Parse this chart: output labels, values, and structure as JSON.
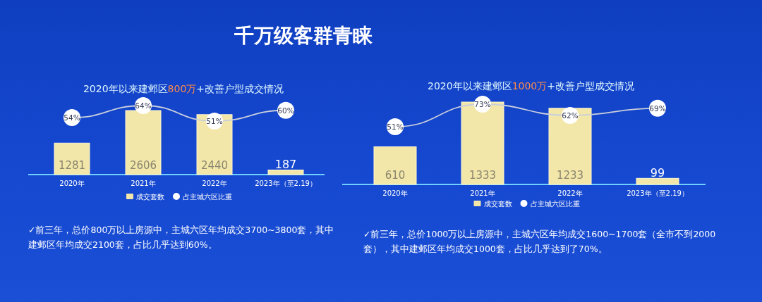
{
  "chart_data": [
    {
      "type": "bar",
      "title": "千万级客群青睐",
      "subtitle": "2020年以来建邺区**800万**+改善户型成交情况",
      "categories": [
        "2020年",
        "2021年",
        "2022年",
        "2023年（至2.19）"
      ],
      "series": [
        {
          "name": "成交套数",
          "color": "#f2e7a8",
          "values": [
            1281,
            2606,
            2440,
            187
          ]
        },
        {
          "name": "占主城六区比重",
          "type": "line",
          "axis": "y2",
          "color": "#c9cfdc",
          "values": [
            54,
            64,
            51,
            60
          ],
          "value_labels": [
            "54%",
            "64%",
            "51%",
            "60%"
          ]
        }
      ],
      "data_labels": true,
      "legend": "bottom",
      "marker": "circle",
      "annotations": [
        "✓前三年，总价800万以上房源中，主城六区年均成交3700~3800套，其中建邺区年均成交2100套，占比几乎达到60%。"
      ]
    },
    {
      "type": "bar",
      "subtitle": "2020年以来建邺区**1000万**+改善户型成交情况",
      "categories": [
        "2020年",
        "2021年",
        "2022年",
        "2023年（至2.19）"
      ],
      "series": [
        {
          "name": "成交套数",
          "color": "#f2e7a8",
          "values": [
            610,
            1333,
            1233,
            99
          ]
        },
        {
          "name": "占主城六区比重",
          "type": "line",
          "axis": "y2",
          "color": "#c9cfdc",
          "values": [
            51,
            73,
            62,
            69
          ],
          "value_labels": [
            "51%",
            "73%",
            "62%",
            "69%"
          ]
        }
      ],
      "data_labels": true,
      "legend": "bottom",
      "marker": "circle",
      "annotations": [
        "✓前三年，总价1000万以上房源中，主城六区年均成交1600~1700套（全市不到2000套），其中建邺区年均成交1000套，占比几乎达到了70%。"
      ]
    }
  ]
}
